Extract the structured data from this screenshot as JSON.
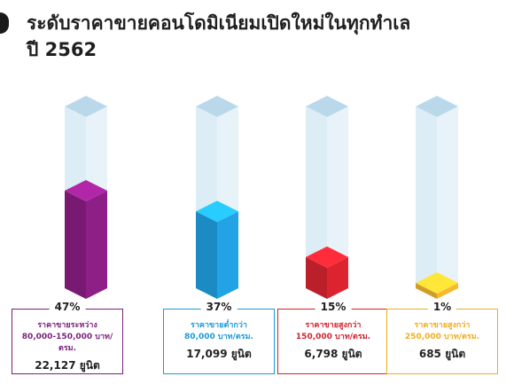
{
  "title": {
    "line1": "ระดับราคาขายคอนโดมิเนียมเปิดใหม่ในทุกทำเล",
    "line2": "ปี 2562"
  },
  "chart_data": {
    "type": "bar",
    "categories": [
      "80,000-150,000 บาท/ตรม.",
      "ต่ำกว่า 80,000 บาท/ตรม.",
      "สูงกว่า 150,000 บาท/ตรม.",
      "สูงกว่า 250,000 บาท/ตรม."
    ],
    "values": [
      47,
      37,
      15,
      1
    ],
    "units": [
      22127,
      17099,
      6798,
      685
    ],
    "ylim": [
      0,
      100
    ],
    "colors": [
      "#8e1f86",
      "#21a3e6",
      "#dc2430",
      "#f7b92e"
    ]
  },
  "cards": [
    {
      "pct": "47%",
      "line1": "ราคาขายระหว่าง",
      "line2": "80,000-150,000 บาท/ตรม.",
      "units": "22,127 ยูนิต",
      "color": "#7a1f7b"
    },
    {
      "pct": "37%",
      "line1": "ราคาขายต่ำกว่า",
      "line2": "80,000 บาท/ตรม.",
      "units": "17,099 ยูนิต",
      "color": "#1b9ad7"
    },
    {
      "pct": "15%",
      "line1": "ราคาขายสูงกว่า",
      "line2": "150,000 บาท/ตรม.",
      "units": "6,798 ยูนิต",
      "color": "#cf2330"
    },
    {
      "pct": "1%",
      "line1": "ราคาขายสูงกว่า",
      "line2": "250,000 บาท/ตรม.",
      "units": "685 ยูนิต",
      "color": "#f0ad1c"
    }
  ]
}
